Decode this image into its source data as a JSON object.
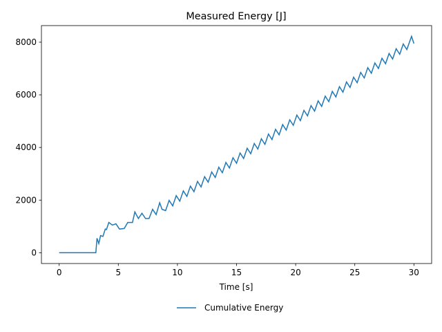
{
  "chart_data": {
    "type": "line",
    "title": "Measured Energy [J]",
    "xlabel": "Time [s]",
    "x": [
      0,
      3.1,
      3.2,
      3.35,
      3.5,
      3.7,
      3.9,
      4.0,
      4.2,
      4.5,
      4.8,
      5.1,
      5.5,
      5.8,
      6.2,
      6.4,
      6.7,
      7.0,
      7.3,
      7.6,
      7.9,
      8.2,
      8.5,
      8.7,
      9.0,
      9.3,
      9.6,
      9.9,
      10.2,
      10.5,
      10.8,
      11.1,
      11.4,
      11.7,
      12.0,
      12.3,
      12.6,
      12.9,
      13.2,
      13.5,
      13.8,
      14.1,
      14.4,
      14.7,
      15.0,
      15.3,
      15.6,
      15.9,
      16.2,
      16.5,
      16.8,
      17.1,
      17.4,
      17.7,
      18.0,
      18.3,
      18.6,
      18.9,
      19.2,
      19.5,
      19.8,
      20.1,
      20.4,
      20.7,
      21.0,
      21.3,
      21.6,
      21.9,
      22.2,
      22.5,
      22.8,
      23.1,
      23.4,
      23.7,
      24.0,
      24.3,
      24.6,
      24.9,
      25.2,
      25.5,
      25.8,
      26.1,
      26.4,
      26.7,
      27.0,
      27.3,
      27.6,
      27.9,
      28.2,
      28.5,
      28.8,
      29.1,
      29.4,
      29.8,
      30.0
    ],
    "series": [
      {
        "name": "Cumulative Energy",
        "color": "#1f77b4",
        "values": [
          0,
          0,
          550,
          350,
          650,
          620,
          900,
          880,
          1150,
          1050,
          1100,
          900,
          920,
          1150,
          1150,
          1550,
          1300,
          1500,
          1300,
          1300,
          1650,
          1450,
          1900,
          1650,
          1600,
          1990,
          1780,
          2170,
          1960,
          2350,
          2140,
          2530,
          2320,
          2710,
          2500,
          2890,
          2680,
          3070,
          2860,
          3250,
          3040,
          3430,
          3220,
          3610,
          3400,
          3790,
          3580,
          3970,
          3760,
          4150,
          3940,
          4330,
          4120,
          4510,
          4300,
          4690,
          4480,
          4870,
          4660,
          5050,
          4840,
          5230,
          5020,
          5410,
          5200,
          5590,
          5380,
          5770,
          5560,
          5950,
          5740,
          6130,
          5920,
          6310,
          6100,
          6490,
          6280,
          6670,
          6460,
          6850,
          6640,
          7030,
          6820,
          7210,
          7000,
          7390,
          7180,
          7570,
          7360,
          7750,
          7540,
          7930,
          7720,
          8220,
          7950
        ]
      }
    ],
    "xlim": [
      -1.5,
      31.5
    ],
    "xticks": [
      0,
      5,
      10,
      15,
      20,
      25,
      30
    ],
    "ylim": [
      -410,
      8630
    ],
    "yticks": [
      0,
      2000,
      4000,
      6000,
      8000
    ],
    "legend": "lower center"
  }
}
